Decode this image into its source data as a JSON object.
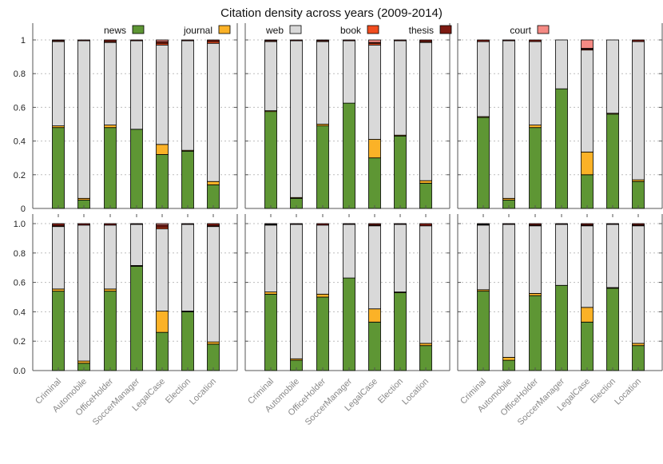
{
  "chart_data": {
    "type": "bar",
    "stacked": true,
    "title": "Citation density across years (2009-2014)",
    "categories": [
      "Criminal",
      "Automobile",
      "OfficeHolder",
      "SoccerManager",
      "LegalCase",
      "Election",
      "Location"
    ],
    "ylim": [
      0,
      1.1
    ],
    "y_ticks_top": [
      "0",
      "0.2",
      "0.4",
      "0.6",
      "0.8",
      "1"
    ],
    "y_ticks_bottom": [
      "0.0",
      "0.2",
      "0.4",
      "0.6",
      "0.8",
      "1.0"
    ],
    "series_order": [
      "news",
      "journal",
      "web",
      "book",
      "thesis",
      "court"
    ],
    "legend": [
      {
        "key": "news",
        "label": "news",
        "color": "#5e9634"
      },
      {
        "key": "journal",
        "label": "journal",
        "color": "#fbb227"
      },
      {
        "key": "web",
        "label": "web",
        "color": "#d9d9d9"
      },
      {
        "key": "book",
        "label": "book",
        "color": "#f14d1f"
      },
      {
        "key": "thesis",
        "label": "thesis",
        "color": "#7d1a12"
      },
      {
        "key": "court",
        "label": "court",
        "color": "#f58a84"
      }
    ],
    "panels": [
      {
        "row": 0,
        "col": 0,
        "data": {
          "news": [
            0.48,
            0.05,
            0.48,
            0.47,
            0.32,
            0.34,
            0.14
          ],
          "journal": [
            0.01,
            0.01,
            0.015,
            0.0,
            0.06,
            0.005,
            0.02
          ],
          "web": [
            0.5,
            0.935,
            0.49,
            0.525,
            0.59,
            0.65,
            0.82
          ],
          "book": [
            0.005,
            0.0,
            0.005,
            0.0,
            0.01,
            0.0,
            0.01
          ],
          "thesis": [
            0.005,
            0.005,
            0.01,
            0.005,
            0.01,
            0.005,
            0.01
          ],
          "court": [
            0.0,
            0.0,
            0.0,
            0.0,
            0.01,
            0.0,
            0.0
          ]
        }
      },
      {
        "row": 0,
        "col": 1,
        "data": {
          "news": [
            0.575,
            0.06,
            0.49,
            0.625,
            0.3,
            0.43,
            0.15
          ],
          "journal": [
            0.005,
            0.005,
            0.01,
            0.0,
            0.11,
            0.005,
            0.015
          ],
          "web": [
            0.41,
            0.93,
            0.49,
            0.37,
            0.56,
            0.56,
            0.82
          ],
          "book": [
            0.005,
            0.0,
            0.005,
            0.0,
            0.01,
            0.0,
            0.005
          ],
          "thesis": [
            0.005,
            0.005,
            0.005,
            0.005,
            0.005,
            0.005,
            0.01
          ],
          "court": [
            0.0,
            0.0,
            0.0,
            0.0,
            0.015,
            0.0,
            0.0
          ]
        }
      },
      {
        "row": 0,
        "col": 2,
        "data": {
          "news": [
            0.54,
            0.05,
            0.48,
            0.71,
            0.2,
            0.56,
            0.16
          ],
          "journal": [
            0.005,
            0.01,
            0.015,
            0.0,
            0.135,
            0.005,
            0.01
          ],
          "web": [
            0.445,
            0.935,
            0.495,
            0.29,
            0.605,
            0.435,
            0.82
          ],
          "book": [
            0.0,
            0.0,
            0.0,
            0.0,
            0.005,
            0.0,
            0.0
          ],
          "thesis": [
            0.01,
            0.005,
            0.01,
            0.0,
            0.005,
            0.0,
            0.01
          ],
          "court": [
            0.0,
            0.0,
            0.0,
            0.0,
            0.05,
            0.0,
            0.0
          ]
        }
      },
      {
        "row": 1,
        "col": 0,
        "data": {
          "news": [
            0.54,
            0.05,
            0.54,
            0.71,
            0.26,
            0.4,
            0.18
          ],
          "journal": [
            0.015,
            0.015,
            0.015,
            0.005,
            0.145,
            0.005,
            0.015
          ],
          "web": [
            0.425,
            0.925,
            0.435,
            0.28,
            0.56,
            0.59,
            0.785
          ],
          "book": [
            0.005,
            0.0,
            0.0,
            0.0,
            0.01,
            0.0,
            0.005
          ],
          "thesis": [
            0.015,
            0.01,
            0.01,
            0.005,
            0.015,
            0.005,
            0.015
          ],
          "court": [
            0.0,
            0.0,
            0.0,
            0.0,
            0.01,
            0.0,
            0.0
          ]
        }
      },
      {
        "row": 1,
        "col": 1,
        "data": {
          "news": [
            0.52,
            0.07,
            0.5,
            0.63,
            0.33,
            0.53,
            0.17
          ],
          "journal": [
            0.015,
            0.01,
            0.02,
            0.0,
            0.09,
            0.005,
            0.015
          ],
          "web": [
            0.455,
            0.915,
            0.47,
            0.365,
            0.565,
            0.46,
            0.8
          ],
          "book": [
            0.005,
            0.0,
            0.0,
            0.0,
            0.005,
            0.0,
            0.0
          ],
          "thesis": [
            0.005,
            0.005,
            0.01,
            0.005,
            0.01,
            0.005,
            0.015
          ],
          "court": [
            0.0,
            0.0,
            0.0,
            0.0,
            0.0,
            0.0,
            0.0
          ]
        }
      },
      {
        "row": 1,
        "col": 2,
        "data": {
          "news": [
            0.54,
            0.07,
            0.51,
            0.58,
            0.33,
            0.56,
            0.17
          ],
          "journal": [
            0.01,
            0.02,
            0.015,
            0.0,
            0.1,
            0.005,
            0.015
          ],
          "web": [
            0.44,
            0.905,
            0.46,
            0.415,
            0.555,
            0.43,
            0.8
          ],
          "book": [
            0.005,
            0.0,
            0.005,
            0.0,
            0.005,
            0.0,
            0.005
          ],
          "thesis": [
            0.005,
            0.005,
            0.01,
            0.005,
            0.01,
            0.005,
            0.01
          ],
          "court": [
            0.0,
            0.0,
            0.0,
            0.0,
            0.0,
            0.0,
            0.0
          ]
        }
      }
    ]
  }
}
